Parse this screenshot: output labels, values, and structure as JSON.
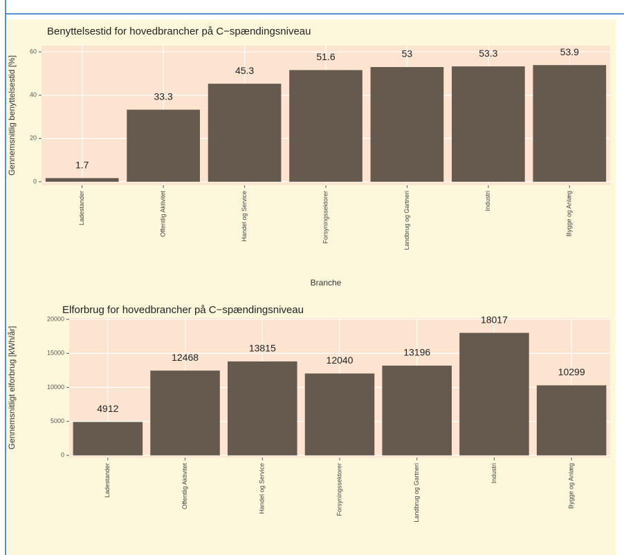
{
  "chart_data": [
    {
      "type": "bar",
      "title": "Benyttelsestid for hovedbrancher på C−spændingsniveau",
      "x_label": "Branche",
      "y_label": "Gennemsnitlig benyttelsestid [%]",
      "categories": [
        "Ladestander",
        "Offentlig Aktivitet",
        "Handel og Service",
        "Forsyningssektorer",
        "Landbrug og Gartneri",
        "Industri",
        "Bygge og Anlæg"
      ],
      "values": [
        1.7,
        33.3,
        45.3,
        51.6,
        53,
        53.3,
        53.9
      ],
      "color": "#665a4e",
      "ylim": [
        -1.6,
        62.9
      ],
      "yticks": [
        0,
        20,
        40,
        60
      ],
      "grid": true
    },
    {
      "type": "bar",
      "title": "Elforbrug for hovedbrancher på C−spændingsniveau",
      "y_label": "Gennemsnitligt elforbrug [kWh/år]",
      "categories": [
        "Ladestander",
        "Offentlig Aktivitet",
        "Handel og Service",
        "Forsyningssektorer",
        "Landbrug og Gartneri",
        "Industri",
        "Bygge og Anlæg"
      ],
      "values": [
        4912,
        12468,
        13815,
        12040,
        13196,
        18017,
        10299
      ],
      "color": "#665a4e",
      "ylim": [
        -320,
        20210
      ],
      "yticks": [
        0,
        5000,
        10000,
        15000,
        20000
      ],
      "grid": true
    }
  ]
}
